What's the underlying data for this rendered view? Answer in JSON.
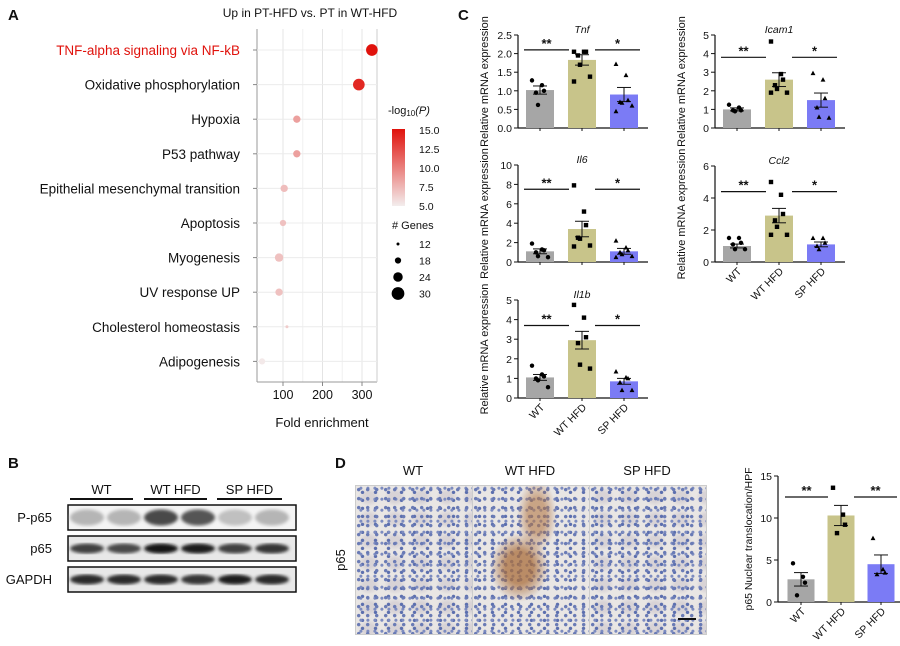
{
  "panel_labels": {
    "a": "A",
    "b": "B",
    "c": "C",
    "d": "D"
  },
  "colors": {
    "wt": "#a6a6a6",
    "wt_hfd": "#c8c48a",
    "sp_hfd": "#7b7bf5",
    "sig_high": "#e0120c",
    "sig_low": "#f3eded",
    "highlight_text": "#e0120c"
  },
  "chart_data": [
    {
      "type": "scatter",
      "title": "Up in PT-HFD vs. PT in WT-HFD",
      "xlabel": "Fold enrichment",
      "xlim": [
        45,
        340
      ],
      "xticks": [
        100,
        200,
        300
      ],
      "grid": true,
      "legend_placement": "right",
      "color_legend": {
        "title_prefix": "-log",
        "title_sub": "10",
        "title_suffix": "(P)",
        "ticks": [
          "15.0",
          "12.5",
          "10.0",
          "7.5",
          "5.0"
        ],
        "range": [
          5,
          15
        ]
      },
      "size_legend": {
        "title": "# Genes",
        "values": [
          12,
          18,
          24,
          30
        ]
      },
      "terms": [
        {
          "name": "TNF-alpha signaling via NF-kB",
          "fold": 325,
          "neglog10p": 15,
          "genes": 28,
          "highlight": true
        },
        {
          "name": "Oxidative phosphorylation",
          "fold": 292,
          "neglog10p": 14,
          "genes": 28
        },
        {
          "name": "Hypoxia",
          "fold": 135,
          "neglog10p": 8.5,
          "genes": 20
        },
        {
          "name": "P53 pathway",
          "fold": 135,
          "neglog10p": 8.5,
          "genes": 20
        },
        {
          "name": "Epithelial mesenchymal transition",
          "fold": 103,
          "neglog10p": 7.2,
          "genes": 20
        },
        {
          "name": "Apoptosis",
          "fold": 100,
          "neglog10p": 7,
          "genes": 18
        },
        {
          "name": "Myogenesis",
          "fold": 90,
          "neglog10p": 7,
          "genes": 22
        },
        {
          "name": "UV response UP",
          "fold": 90,
          "neglog10p": 7,
          "genes": 20
        },
        {
          "name": "Cholesterol homeostasis",
          "fold": 110,
          "neglog10p": 6.5,
          "genes": 12
        },
        {
          "name": "Adipogenesis",
          "fold": 47,
          "neglog10p": 5.2,
          "genes": 18
        }
      ]
    },
    {
      "type": "bar",
      "title": "Tnf",
      "ylabel": "Relative mRNA expression",
      "ylim": [
        0,
        2.5
      ],
      "yticks": [
        "0.0",
        "0.5",
        "1.0",
        "1.5",
        "2.0",
        "2.5"
      ],
      "categories": [
        "WT",
        "WT HFD",
        "SP HFD"
      ],
      "show_xlabels": false,
      "values": [
        1.02,
        1.83,
        0.9
      ],
      "sem": [
        0.11,
        0.14,
        0.19
      ],
      "points": [
        [
          1.28,
          1.15,
          1.0,
          0.95,
          0.62
        ],
        [
          2.05,
          2.05,
          2.05,
          1.95,
          1.7,
          1.38,
          1.25
        ],
        [
          1.72,
          1.42,
          0.75,
          0.7,
          0.68,
          0.6,
          0.45
        ]
      ],
      "significance": [
        {
          "label": "**",
          "y": 2.1
        },
        {
          "label": "*",
          "y": 2.1
        }
      ]
    },
    {
      "type": "bar",
      "title": "Icam1",
      "ylabel": "Relative mRNA expression",
      "ylim": [
        0,
        5
      ],
      "yticks": [
        "0",
        "1",
        "2",
        "3",
        "4",
        "5"
      ],
      "categories": [
        "WT",
        "WT HFD",
        "SP HFD"
      ],
      "show_xlabels": false,
      "values": [
        1.0,
        2.6,
        1.5
      ],
      "sem": [
        0.08,
        0.37,
        0.38
      ],
      "points": [
        [
          1.25,
          1.1,
          0.95,
          0.95,
          0.9
        ],
        [
          4.65,
          2.9,
          2.6,
          2.3,
          2.1,
          1.9,
          1.9
        ],
        [
          2.95,
          2.6,
          1.6,
          1.1,
          0.6,
          0.55
        ]
      ],
      "significance": [
        {
          "label": "**",
          "y": 3.8
        },
        {
          "label": "*",
          "y": 3.8
        }
      ]
    },
    {
      "type": "bar",
      "title": "Il6",
      "ylabel": "Relative mRNA expression",
      "ylim": [
        0,
        10
      ],
      "yticks": [
        "0",
        "2",
        "4",
        "6",
        "8",
        "10"
      ],
      "categories": [
        "WT",
        "WT HFD",
        "SP HFD"
      ],
      "show_xlabels": false,
      "values": [
        1.1,
        3.4,
        1.1
      ],
      "sem": [
        0.25,
        0.8,
        0.3
      ],
      "points": [
        [
          1.9,
          1.3,
          1.2,
          1.0,
          0.6,
          0.5
        ],
        [
          7.9,
          5.2,
          3.8,
          2.5,
          2.4,
          1.7,
          1.6
        ],
        [
          2.2,
          1.5,
          1.2,
          1.0,
          0.8,
          0.6,
          0.5
        ]
      ],
      "significance": [
        {
          "label": "**",
          "y": 7.5
        },
        {
          "label": "*",
          "y": 7.5
        }
      ]
    },
    {
      "type": "bar",
      "title": "Ccl2",
      "ylabel": "Relative mRNA expression",
      "ylim": [
        0,
        6
      ],
      "yticks": [
        "0",
        "2",
        "4",
        "6"
      ],
      "categories": [
        "WT",
        "WT HFD",
        "SP HFD"
      ],
      "show_xlabels": true,
      "values": [
        1.0,
        2.9,
        1.1
      ],
      "sem": [
        0.12,
        0.45,
        0.15
      ],
      "points": [
        [
          1.5,
          1.5,
          1.2,
          1.1,
          0.8,
          0.8
        ],
        [
          5.0,
          4.2,
          3.0,
          2.6,
          2.2,
          1.7,
          1.7
        ],
        [
          1.5,
          1.5,
          1.2,
          1.0,
          0.8
        ]
      ],
      "significance": [
        {
          "label": "**",
          "y": 4.4
        },
        {
          "label": "*",
          "y": 4.4
        }
      ]
    },
    {
      "type": "bar",
      "title": "Il1b",
      "ylabel": "Relative mRNA expression",
      "ylim": [
        0,
        5
      ],
      "yticks": [
        "0",
        "1",
        "2",
        "3",
        "4",
        "5"
      ],
      "categories": [
        "WT",
        "WT HFD",
        "SP HFD"
      ],
      "show_xlabels": true,
      "values": [
        1.05,
        2.95,
        0.85
      ],
      "sem": [
        0.15,
        0.45,
        0.15
      ],
      "points": [
        [
          1.65,
          1.2,
          1.1,
          1.0,
          0.9,
          0.55
        ],
        [
          4.75,
          4.1,
          3.1,
          2.8,
          1.7,
          1.5
        ],
        [
          1.35,
          1.05,
          1.0,
          0.8,
          0.4,
          0.4
        ]
      ],
      "significance": [
        {
          "label": "**",
          "y": 3.7
        },
        {
          "label": "*",
          "y": 3.7
        }
      ]
    },
    {
      "type": "bar",
      "title": "",
      "ylabel": "p65 Nuclear translocation/HPF",
      "ylim": [
        0,
        15
      ],
      "yticks": [
        "0",
        "5",
        "10",
        "15"
      ],
      "categories": [
        "WT",
        "WT HFD",
        "SP HFD"
      ],
      "show_xlabels": true,
      "values": [
        2.7,
        10.3,
        4.5
      ],
      "sem": [
        0.8,
        1.2,
        1.1
      ],
      "points": [
        [
          4.6,
          3.0,
          2.3,
          0.8
        ],
        [
          13.6,
          10.4,
          9.2,
          8.2
        ],
        [
          7.6,
          3.9,
          3.5,
          3.3
        ]
      ],
      "significance": [
        {
          "label": "**",
          "y": 12.5
        },
        {
          "label": "**",
          "y": 12.5
        }
      ]
    }
  ],
  "blot": {
    "groups": [
      "WT",
      "WT HFD",
      "SP HFD"
    ],
    "rows": [
      {
        "label": "P-p65",
        "intensity": [
          0.25,
          0.25,
          0.75,
          0.7,
          0.2,
          0.25
        ]
      },
      {
        "label": "p65",
        "intensity": [
          0.8,
          0.75,
          1.0,
          0.95,
          0.8,
          0.85
        ]
      },
      {
        "label": "GAPDH",
        "intensity": [
          0.9,
          0.9,
          0.9,
          0.85,
          0.95,
          0.9
        ]
      }
    ]
  },
  "histology": {
    "row_label": "p65",
    "columns": [
      "WT",
      "WT HFD",
      "SP HFD"
    ]
  }
}
